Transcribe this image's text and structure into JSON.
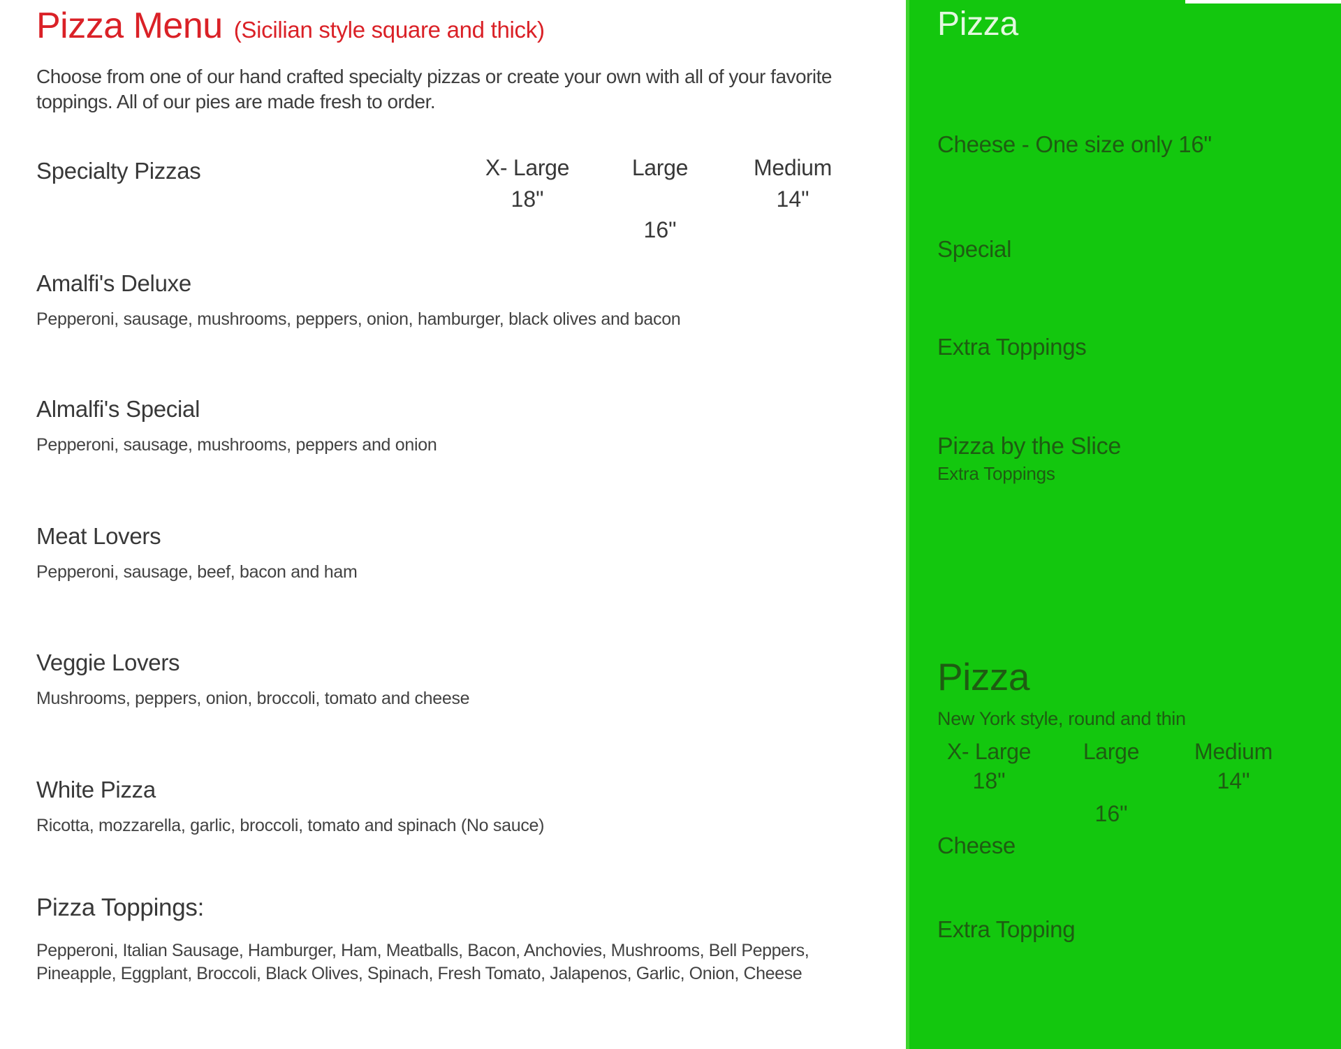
{
  "left": {
    "title": "Pizza Menu",
    "title_note": "(Sicilian style square and thick)",
    "intro": "Choose from one of our hand crafted specialty pizzas or create your own with all of your favorite toppings. All of our pies are made fresh to order.",
    "section_heading": "Specialty Pizzas",
    "size_columns": [
      {
        "label": "X- Large",
        "size": "18\""
      },
      {
        "label": "Large",
        "size": "16\""
      },
      {
        "label": "Medium",
        "size": "14\""
      }
    ],
    "items": [
      {
        "name": "Amalfi's Deluxe",
        "desc": "Pepperoni, sausage, mushrooms, peppers, onion, hamburger, black olives and bacon"
      },
      {
        "name": "Almalfi's Special",
        "desc": "Pepperoni, sausage, mushrooms, peppers and onion"
      },
      {
        "name": "Meat Lovers",
        "desc": "Pepperoni, sausage, beef, bacon and ham"
      },
      {
        "name": "Veggie Lovers",
        "desc": "Mushrooms, peppers, onion, broccoli, tomato and cheese"
      },
      {
        "name": "White Pizza",
        "desc": "Ricotta, mozzarella, garlic, broccoli, tomato and spinach (No sauce)"
      }
    ],
    "toppings_heading": "Pizza Toppings:",
    "toppings": "Pepperoni, Italian Sausage, Hamburger, Ham, Meatballs, Bacon, Anchovies, Mushrooms, Bell Peppers, Pineapple, Eggplant, Broccoli, Black Olives, Spinach, Fresh Tomato, Jalapenos, Garlic, Onion, Cheese"
  },
  "right": {
    "title": "Pizza",
    "items_top": [
      "Cheese - One size only 16\"",
      "Special",
      "Extra Toppings"
    ],
    "slice_heading": "Pizza by the Slice",
    "slice_sub": "Extra Toppings",
    "ny_title": "Pizza",
    "ny_sub": "New York style, round and thin",
    "size_columns": [
      {
        "label": "X- Large",
        "size": "18\""
      },
      {
        "label": "Large",
        "size": "16\""
      },
      {
        "label": "Medium",
        "size": "14\""
      }
    ],
    "items_bottom": [
      "Cheese",
      "Extra Topping"
    ]
  },
  "colors": {
    "accent_red": "#da2127",
    "panel_green": "#13c70e",
    "panel_edge_green": "#3ed32e",
    "panel_text_green": "#1e5c12",
    "panel_title_pale": "#e3f8df",
    "body_text": "#3d3d3d"
  }
}
